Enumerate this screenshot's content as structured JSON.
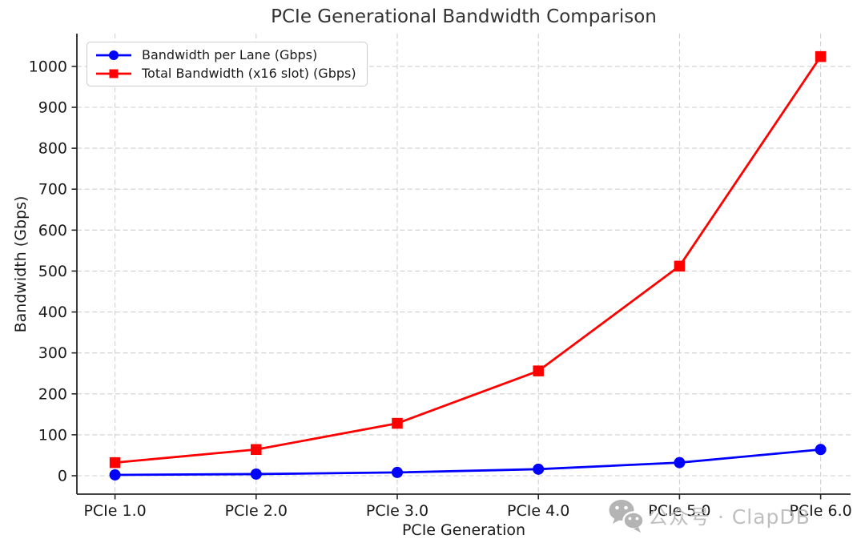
{
  "page": {
    "background": "#ffffff"
  },
  "chart_data": {
    "type": "line",
    "title": "PCIe Generational Bandwidth Comparison",
    "xlabel": "PCIe Generation",
    "ylabel": "Bandwidth (Gbps)",
    "categories": [
      "PCIe 1.0",
      "PCIe 2.0",
      "PCIe 3.0",
      "PCIe 4.0",
      "PCIe 5.0",
      "PCIe 6.0"
    ],
    "series": [
      {
        "name": "Bandwidth per Lane (Gbps)",
        "color": "#0000ff",
        "marker": "circle",
        "values": [
          2,
          4,
          8,
          16,
          32,
          64
        ]
      },
      {
        "name": "Total Bandwidth (x16 slot) (Gbps)",
        "color": "#ff0000",
        "marker": "square",
        "values": [
          32,
          64,
          128,
          256,
          512,
          1024
        ]
      }
    ],
    "yticks": [
      0,
      100,
      200,
      300,
      400,
      500,
      600,
      700,
      800,
      900,
      1000
    ],
    "ylim": [
      -45,
      1080
    ],
    "grid": {
      "on": true,
      "style": "dashed",
      "color": "#cfcfcf"
    },
    "legend_position": "upper-left",
    "spine_color": "#262626",
    "text_color": "#1a1a1a"
  },
  "watermark": {
    "icon": "wechat-icon",
    "text": "公众号 · ClapDB",
    "color": "#b4b4b4"
  }
}
